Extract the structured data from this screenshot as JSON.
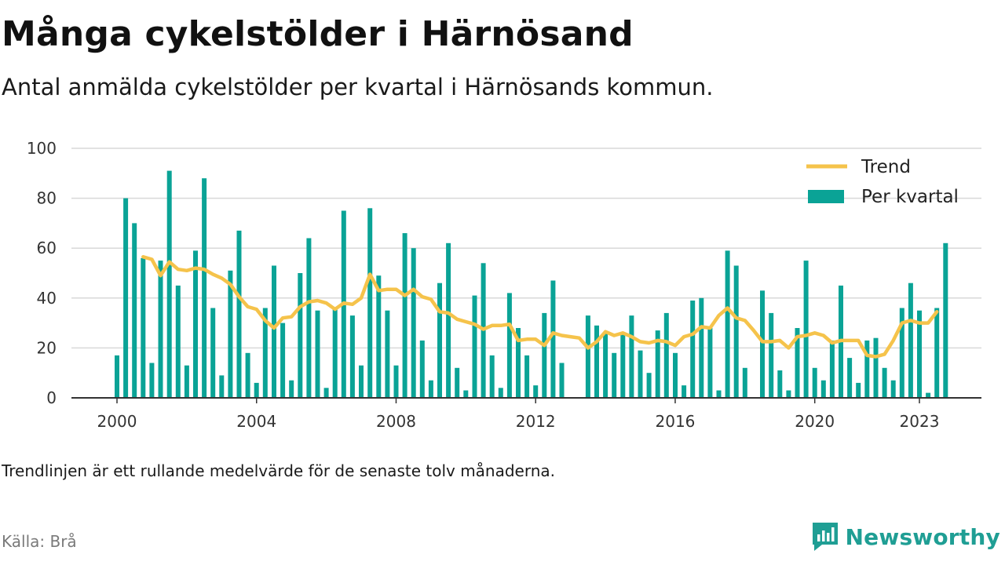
{
  "title": "Många cykelstölder i Härnösand",
  "subtitle": "Antal anmälda cykelstölder per kvartal i Härnösands kommun.",
  "note": "Trendlinjen är ett rullande medelvärde för de senaste tolv månaderna.",
  "source": "Källa: Brå",
  "brand": "Newsworthy",
  "colors": {
    "bars": "#0aa396",
    "trend": "#f5c34b",
    "grid": "#d9d9d9",
    "axis": "#333333",
    "brand": "#1f9e94"
  },
  "chart_data": {
    "type": "bar",
    "ylim": [
      0,
      100
    ],
    "yticks": [
      0,
      20,
      40,
      60,
      80,
      100
    ],
    "xlim": [
      2000,
      2024.1
    ],
    "xticks": [
      2000,
      2004,
      2008,
      2012,
      2016,
      2020,
      2023
    ],
    "xtick_labels": [
      "2000",
      "2004",
      "2008",
      "2012",
      "2016",
      "2020",
      "2023"
    ],
    "grid": true,
    "legend_position": "top-right",
    "series": [
      {
        "name": "Per kvartal",
        "type": "bar",
        "start": "2000 Q1",
        "values": [
          17,
          80,
          70,
          56,
          14,
          55,
          91,
          45,
          13,
          59,
          88,
          36,
          9,
          51,
          67,
          18,
          6,
          36,
          53,
          30,
          7,
          50,
          64,
          35,
          4,
          36,
          75,
          33,
          13,
          76,
          49,
          35,
          13,
          66,
          60,
          23,
          7,
          46,
          62,
          12,
          3,
          41,
          54,
          17,
          4,
          42,
          28,
          17,
          5,
          34,
          47,
          14,
          0,
          0,
          33,
          29,
          26,
          18,
          26,
          33,
          19,
          10,
          27,
          34,
          18,
          5,
          39,
          40,
          28,
          3,
          59,
          53,
          12,
          0,
          43,
          34,
          11,
          3,
          28,
          55,
          12,
          7,
          23,
          45,
          16,
          6,
          23,
          24,
          12,
          7,
          36,
          46,
          35,
          2,
          36,
          62
        ]
      },
      {
        "name": "Trend",
        "type": "line",
        "start": "2000 Q4",
        "values": [
          56.5,
          55.5,
          49,
          54.5,
          51.5,
          51,
          52,
          51.5,
          49.5,
          48,
          45.5,
          40.5,
          36.5,
          35.5,
          31,
          28,
          32,
          32.5,
          36.5,
          38.5,
          39,
          38,
          35.5,
          38,
          37.5,
          40,
          49.5,
          43,
          43.5,
          43.5,
          41,
          43.5,
          40.5,
          39.5,
          34.5,
          34,
          31.5,
          30.5,
          29.5,
          27.5,
          29,
          29,
          29.5,
          23,
          23.5,
          23.5,
          21,
          26,
          25,
          24.5,
          24,
          20,
          22.5,
          26.5,
          25,
          26,
          24.5,
          22.5,
          22,
          23,
          22.5,
          21,
          24.5,
          25.5,
          28.5,
          28,
          33,
          36,
          32,
          31,
          27,
          22.5,
          22.5,
          23,
          20,
          24.5,
          25,
          26,
          25,
          22,
          23,
          23,
          23,
          17,
          16.5,
          17.5,
          23,
          30,
          31,
          30,
          30,
          34.5
        ]
      }
    ]
  }
}
